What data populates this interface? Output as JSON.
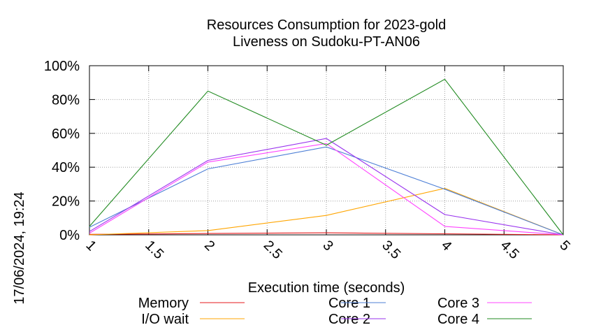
{
  "chart_data": {
    "type": "line",
    "title": "Resources Consumption for 2023-gold",
    "subtitle": "Liveness on Sudoku-PT-AN06",
    "xlabel": "Execution time (seconds)",
    "ylabel": "",
    "side_label": "17/06/2024, 19:24",
    "xlim": [
      1,
      5
    ],
    "ylim": [
      0,
      100
    ],
    "x_ticks": [
      {
        "value": 1,
        "label": "1"
      },
      {
        "value": 1.5,
        "label": "1.5"
      },
      {
        "value": 2,
        "label": "2"
      },
      {
        "value": 2.5,
        "label": "2.5"
      },
      {
        "value": 3,
        "label": "3"
      },
      {
        "value": 3.5,
        "label": "3.5"
      },
      {
        "value": 4,
        "label": "4"
      },
      {
        "value": 4.5,
        "label": "4.5"
      },
      {
        "value": 5,
        "label": "5"
      }
    ],
    "y_ticks": [
      {
        "value": 0,
        "label": "0%"
      },
      {
        "value": 20,
        "label": "20%"
      },
      {
        "value": 40,
        "label": "40%"
      },
      {
        "value": 60,
        "label": "60%"
      },
      {
        "value": 80,
        "label": "80%"
      },
      {
        "value": 100,
        "label": "100%"
      }
    ],
    "grid": true,
    "legend_position": "bottom",
    "x": [
      1,
      2,
      3,
      4,
      5
    ],
    "series": [
      {
        "name": "Memory",
        "color": "#e41a1c",
        "values": [
          0.3,
          0.8,
          1.2,
          0.6,
          0
        ]
      },
      {
        "name": "I/O wait",
        "color": "#ffa500",
        "values": [
          0,
          2.5,
          11.5,
          27.5,
          0
        ]
      },
      {
        "name": "Core 1",
        "color": "#4d7fd6",
        "values": [
          4.5,
          39,
          52,
          27,
          0
        ]
      },
      {
        "name": "Core 2",
        "color": "#9933ee",
        "values": [
          2,
          44,
          57,
          12,
          0
        ]
      },
      {
        "name": "Core 3",
        "color": "#ff44ff",
        "values": [
          1,
          43,
          54,
          5,
          0
        ]
      },
      {
        "name": "Core 4",
        "color": "#228b22",
        "values": [
          5,
          85,
          53,
          92,
          0
        ]
      }
    ]
  }
}
